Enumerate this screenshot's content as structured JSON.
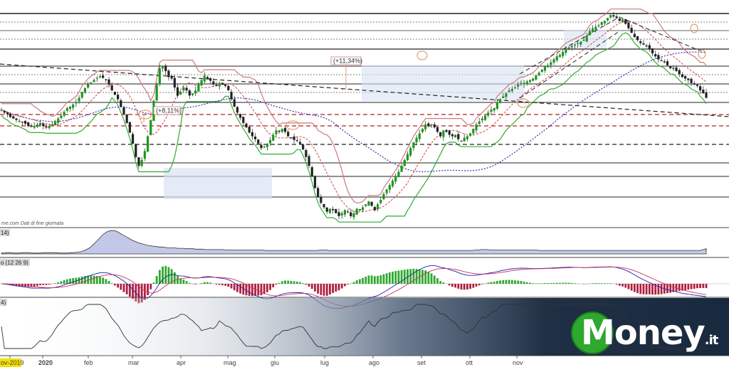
{
  "chart_data": {
    "type": "candlestick",
    "source_note": "me.com  Dati di fine giornata",
    "x_tick_labels": [
      "ov-2019",
      "2020",
      "feb",
      "mar",
      "apr",
      "mag",
      "giu",
      "lug",
      "ago",
      "set",
      "ott",
      "nov"
    ],
    "annotations": {
      "gain_1": "(+8,11%)",
      "gain_2": "(+11,34%)"
    },
    "indicators": {
      "panel_1_label": "14)",
      "panel_2_label": "o (12 26 9)",
      "panel_3_label": "4)"
    },
    "colors": {
      "up_candle": "#1a9a1a",
      "down_candle": "#222222",
      "resistance_line": "#c97a7a",
      "support_line": "#33aa33",
      "long_ma": "#3333aa",
      "dashed_red": "#b02020",
      "brand_green": "#2ea82e",
      "banner_dark": "#1f2f44"
    },
    "price_close": [
      236,
      232,
      230,
      226,
      224,
      222,
      221,
      219,
      217,
      214,
      213,
      214,
      216,
      218,
      214,
      212,
      214,
      216,
      220,
      224,
      228,
      233,
      238,
      240,
      243,
      246,
      252,
      260,
      265,
      270,
      273,
      276,
      279,
      281,
      279,
      276,
      270,
      262,
      256,
      250,
      240,
      230,
      218,
      205,
      190,
      172,
      160,
      168,
      180,
      200,
      222,
      248,
      270,
      292,
      295,
      288,
      280,
      278,
      266,
      255,
      260,
      266,
      262,
      255,
      258,
      262,
      270,
      276,
      282,
      278,
      275,
      270,
      268,
      272,
      270,
      268,
      262,
      250,
      240,
      232,
      225,
      218,
      212,
      205,
      200,
      196,
      190,
      184,
      186,
      190,
      195,
      202,
      208,
      206,
      210,
      206,
      200,
      198,
      195,
      194,
      190,
      182,
      172,
      160,
      146,
      130,
      118,
      110,
      104,
      98,
      102,
      100,
      96,
      92,
      96,
      100,
      98,
      92,
      96,
      102,
      100,
      104,
      108,
      112,
      106,
      100,
      108,
      114,
      122,
      128,
      134,
      140,
      146,
      152,
      160,
      168,
      176,
      184,
      192,
      198,
      204,
      210,
      216,
      214,
      216,
      212,
      206,
      200,
      208,
      206,
      202,
      200,
      202,
      196,
      194,
      198,
      200,
      204,
      210,
      216,
      220,
      224,
      228,
      232,
      236,
      238,
      246,
      250,
      254,
      258,
      262,
      264,
      266,
      270,
      272,
      272,
      274,
      276,
      278,
      282,
      286,
      290,
      294,
      296,
      300,
      304,
      308,
      310,
      314,
      318,
      320,
      322,
      324,
      326,
      328,
      330,
      336,
      342,
      346,
      348,
      350,
      354,
      356,
      360,
      364,
      362,
      360,
      356,
      358,
      352,
      346,
      340,
      334,
      330,
      326,
      324,
      322,
      318,
      312,
      308,
      304,
      302,
      300,
      296,
      292,
      292,
      288,
      284,
      280,
      278,
      276,
      272,
      270,
      268,
      262,
      258,
      252
    ],
    "volatility_series": [
      10,
      10,
      11,
      11,
      10,
      10,
      10,
      11,
      11,
      11,
      10,
      10,
      10,
      10,
      11,
      11,
      11,
      11,
      11,
      10,
      10,
      10,
      10,
      11,
      11,
      12,
      13,
      15,
      18,
      22,
      28,
      35,
      42,
      50,
      56,
      60,
      62,
      62,
      60,
      56,
      52,
      48,
      44,
      40,
      37,
      34,
      32,
      30,
      28,
      27,
      26,
      25,
      24,
      24,
      23,
      22,
      22,
      22,
      21,
      21,
      21,
      20,
      20,
      20,
      19,
      19,
      19,
      18,
      18,
      18,
      18,
      18,
      18,
      18,
      17,
      17,
      17,
      17,
      17,
      17,
      17,
      17,
      17,
      17,
      17,
      17,
      17,
      16,
      16,
      16,
      16,
      16,
      16,
      16,
      16,
      16,
      16,
      16,
      16,
      16,
      16,
      16,
      16,
      16,
      16,
      17,
      17,
      17,
      16,
      16,
      16,
      16,
      16,
      16,
      16,
      16,
      16,
      16,
      16,
      16,
      16,
      16,
      16,
      16,
      16,
      16,
      16,
      16,
      16,
      16,
      16,
      16,
      16,
      16,
      16,
      16,
      16,
      16,
      16,
      16,
      16,
      16,
      16,
      16,
      16,
      16,
      16,
      16,
      16,
      16,
      16,
      16,
      16,
      16,
      16,
      16,
      17,
      17,
      18,
      18,
      18,
      17,
      17,
      17,
      17,
      17,
      17,
      17,
      17,
      17,
      17,
      17,
      17,
      17,
      17,
      17,
      17,
      16,
      16,
      16,
      16,
      16,
      16,
      16,
      16,
      16,
      16,
      16,
      16,
      16,
      16,
      16,
      16,
      16,
      16,
      16,
      16,
      16,
      16,
      16,
      16,
      16,
      16,
      16,
      16,
      16,
      16,
      16,
      16,
      16,
      16,
      16,
      16,
      16,
      16,
      16,
      16,
      16,
      16,
      16,
      16,
      16,
      16,
      16,
      16,
      16,
      16,
      16,
      16,
      16,
      16,
      18,
      20
    ]
  }
}
